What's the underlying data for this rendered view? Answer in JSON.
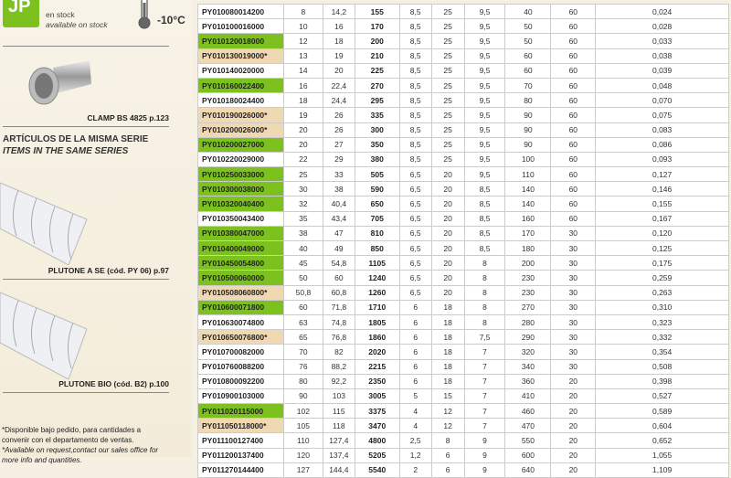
{
  "legend": {
    "badge": "JP",
    "stock_es": "en stock",
    "stock_en": "available on stock",
    "temperature_min": "-10°C"
  },
  "accessory": {
    "caption": "CLAMP BS 4825 p.123"
  },
  "same_series": {
    "title_es": "ARTÍCULOS DE LA MISMA SERIE",
    "title_en": "ITEMS IN THE SAME SERIES",
    "items": [
      {
        "caption": "PLUTONE A SE (cód. PY 06) p.97"
      },
      {
        "caption": "PLUTONE BIO (cód. B2) p.100"
      }
    ]
  },
  "footnote": {
    "es": "*Disponible bajo pedido, para cantidades a convenir con el departamento de ventas.",
    "en": "*Available on request,contact our sales office for more info and quantities."
  },
  "colors": {
    "stock_green": "#7dc11f",
    "on_request_beige": "#f0d8b3"
  },
  "rows": [
    [
      "PY010080014200",
      "8",
      "14,2",
      "155",
      "8,5",
      "25",
      "9,5",
      "40",
      "60",
      "0,024",
      "white"
    ],
    [
      "PY010100016000",
      "10",
      "16",
      "170",
      "8,5",
      "25",
      "9,5",
      "50",
      "60",
      "0,028",
      "white"
    ],
    [
      "PY010120018000",
      "12",
      "18",
      "200",
      "8,5",
      "25",
      "9,5",
      "50",
      "60",
      "0,033",
      "green"
    ],
    [
      "PY010130019000*",
      "13",
      "19",
      "210",
      "8,5",
      "25",
      "9,5",
      "60",
      "60",
      "0,038",
      "beige"
    ],
    [
      "PY010140020000",
      "14",
      "20",
      "225",
      "8,5",
      "25",
      "9,5",
      "60",
      "60",
      "0,039",
      "white"
    ],
    [
      "PY010160022400",
      "16",
      "22,4",
      "270",
      "8,5",
      "25",
      "9,5",
      "70",
      "60",
      "0,048",
      "green"
    ],
    [
      "PY010180024400",
      "18",
      "24,4",
      "295",
      "8,5",
      "25",
      "9,5",
      "80",
      "60",
      "0,070",
      "white"
    ],
    [
      "PY010190026000*",
      "19",
      "26",
      "335",
      "8,5",
      "25",
      "9,5",
      "90",
      "60",
      "0,075",
      "beige"
    ],
    [
      "PY010200026000*",
      "20",
      "26",
      "300",
      "8,5",
      "25",
      "9,5",
      "90",
      "60",
      "0,083",
      "beige"
    ],
    [
      "PY010200027000",
      "20",
      "27",
      "350",
      "8,5",
      "25",
      "9,5",
      "90",
      "60",
      "0,086",
      "green"
    ],
    [
      "PY010220029000",
      "22",
      "29",
      "380",
      "8,5",
      "25",
      "9,5",
      "100",
      "60",
      "0,093",
      "white"
    ],
    [
      "PY010250033000",
      "25",
      "33",
      "505",
      "6,5",
      "20",
      "9,5",
      "110",
      "60",
      "0,127",
      "green"
    ],
    [
      "PY010300038000",
      "30",
      "38",
      "590",
      "6,5",
      "20",
      "8,5",
      "140",
      "60",
      "0,146",
      "green"
    ],
    [
      "PY010320040400",
      "32",
      "40,4",
      "650",
      "6,5",
      "20",
      "8,5",
      "140",
      "60",
      "0,155",
      "green"
    ],
    [
      "PY010350043400",
      "35",
      "43,4",
      "705",
      "6,5",
      "20",
      "8,5",
      "160",
      "60",
      "0,167",
      "white"
    ],
    [
      "PY010380047000",
      "38",
      "47",
      "810",
      "6,5",
      "20",
      "8,5",
      "170",
      "30",
      "0,120",
      "green"
    ],
    [
      "PY010400049000",
      "40",
      "49",
      "850",
      "6,5",
      "20",
      "8,5",
      "180",
      "30",
      "0,125",
      "green"
    ],
    [
      "PY010450054800",
      "45",
      "54,8",
      "1105",
      "6,5",
      "20",
      "8",
      "200",
      "30",
      "0,175",
      "green"
    ],
    [
      "PY010500060000",
      "50",
      "60",
      "1240",
      "6,5",
      "20",
      "8",
      "230",
      "30",
      "0,259",
      "green"
    ],
    [
      "PY010508060800*",
      "50,8",
      "60,8",
      "1260",
      "6,5",
      "20",
      "8",
      "230",
      "30",
      "0,263",
      "beige"
    ],
    [
      "PY010600071800",
      "60",
      "71,8",
      "1710",
      "6",
      "18",
      "8",
      "270",
      "30",
      "0,310",
      "green"
    ],
    [
      "PY010630074800",
      "63",
      "74,8",
      "1805",
      "6",
      "18",
      "8",
      "280",
      "30",
      "0,323",
      "white"
    ],
    [
      "PY010650076800*",
      "65",
      "76,8",
      "1860",
      "6",
      "18",
      "7,5",
      "290",
      "30",
      "0,332",
      "beige"
    ],
    [
      "PY010700082000",
      "70",
      "82",
      "2020",
      "6",
      "18",
      "7",
      "320",
      "30",
      "0,354",
      "white"
    ],
    [
      "PY010760088200",
      "76",
      "88,2",
      "2215",
      "6",
      "18",
      "7",
      "340",
      "30",
      "0,508",
      "white"
    ],
    [
      "PY010800092200",
      "80",
      "92,2",
      "2350",
      "6",
      "18",
      "7",
      "360",
      "20",
      "0,398",
      "white"
    ],
    [
      "PY010900103000",
      "90",
      "103",
      "3005",
      "5",
      "15",
      "7",
      "410",
      "20",
      "0,527",
      "white"
    ],
    [
      "PY011020115000",
      "102",
      "115",
      "3375",
      "4",
      "12",
      "7",
      "460",
      "20",
      "0,589",
      "green"
    ],
    [
      "PY011050118000*",
      "105",
      "118",
      "3470",
      "4",
      "12",
      "7",
      "470",
      "20",
      "0,604",
      "beige"
    ],
    [
      "PY011100127400",
      "110",
      "127,4",
      "4800",
      "2,5",
      "8",
      "9",
      "550",
      "20",
      "0,652",
      "white"
    ],
    [
      "PY011200137400",
      "120",
      "137,4",
      "5205",
      "1,2",
      "6",
      "9",
      "600",
      "20",
      "1,055",
      "white"
    ],
    [
      "PY011270144400",
      "127",
      "144,4",
      "5540",
      "2",
      "6",
      "9",
      "640",
      "20",
      "1,109",
      "white"
    ]
  ]
}
